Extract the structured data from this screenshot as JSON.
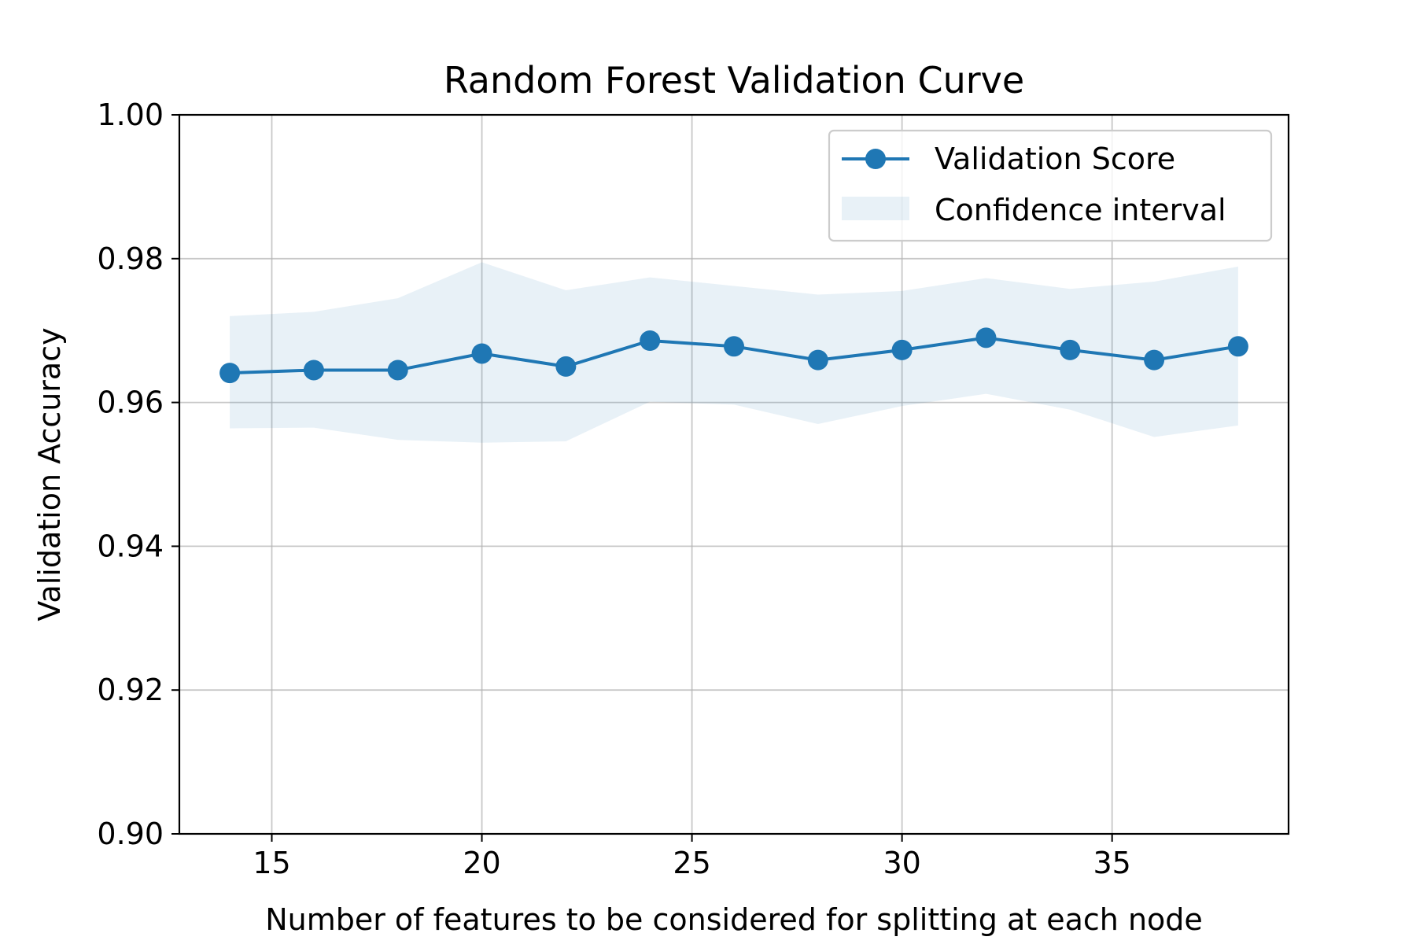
{
  "chart_data": {
    "type": "line",
    "title": "Random Forest Validation Curve",
    "xlabel": "Number of features to be considered for splitting at each node",
    "ylabel": "Validation Accuracy",
    "xlim": [
      12.8,
      39.2
    ],
    "ylim": [
      0.9,
      1.0
    ],
    "xticks": [
      15,
      20,
      25,
      30,
      35
    ],
    "xtick_labels": [
      "15",
      "20",
      "25",
      "30",
      "35"
    ],
    "yticks": [
      0.9,
      0.92,
      0.94,
      0.96,
      0.98,
      1.0
    ],
    "ytick_labels": [
      "0.90",
      "0.92",
      "0.94",
      "0.96",
      "0.98",
      "1.00"
    ],
    "grid": true,
    "legend_position": "top-right",
    "x": [
      14,
      16,
      18,
      20,
      22,
      24,
      26,
      28,
      30,
      32,
      34,
      36,
      38
    ],
    "series": [
      {
        "name": "Validation Score",
        "color": "#1f77b4",
        "marker": "circle",
        "values": [
          0.9641,
          0.9645,
          0.9645,
          0.9668,
          0.965,
          0.9686,
          0.9678,
          0.9659,
          0.9673,
          0.969,
          0.9673,
          0.9659,
          0.9678
        ]
      }
    ],
    "band": {
      "name": "Confidence interval",
      "color": "#1f77b4",
      "opacity": 0.1,
      "lower": [
        0.9564,
        0.9565,
        0.9548,
        0.9544,
        0.9546,
        0.9601,
        0.9597,
        0.957,
        0.9595,
        0.9612,
        0.959,
        0.9552,
        0.9568
      ],
      "upper": [
        0.972,
        0.9726,
        0.9745,
        0.9795,
        0.9756,
        0.9774,
        0.9762,
        0.975,
        0.9755,
        0.9773,
        0.9758,
        0.9768,
        0.9789
      ]
    }
  }
}
